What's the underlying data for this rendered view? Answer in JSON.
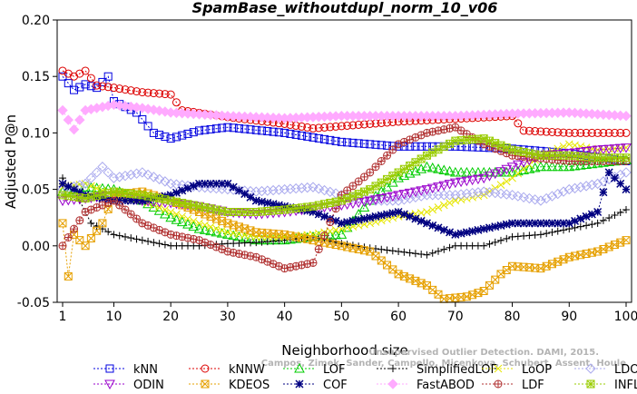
{
  "chart_data": {
    "type": "line",
    "title": "SpamBase_withoutdupl_norm_10_v06",
    "xlabel": "Neighborhood size",
    "ylabel": "Adjusted P@n",
    "xlim": [
      1,
      100
    ],
    "ylim": [
      -0.05,
      0.2
    ],
    "x_ticks": [
      "1",
      "10",
      "20",
      "30",
      "40",
      "50",
      "60",
      "70",
      "80",
      "90",
      "100"
    ],
    "y_ticks": [
      "-0.05",
      "0.00",
      "0.05",
      "0.10",
      "0.15",
      "0.20"
    ],
    "grid": false,
    "legend_position": "bottom",
    "watermark": [
      "Unsupervised Outlier Detection. DAMI, 2015.",
      "Campos, Zimek, Sander, Campello, Micenkova, Schubert, Assent, Houle"
    ],
    "series": [
      {
        "name": "kNN",
        "color": "#0000e0",
        "marker": "square",
        "dash": "2,2",
        "knots": [
          [
            1,
            0.15
          ],
          [
            3,
            0.138
          ],
          [
            5,
            0.143
          ],
          [
            7,
            0.14
          ],
          [
            9,
            0.15
          ],
          [
            10,
            0.128
          ],
          [
            14,
            0.118
          ],
          [
            17,
            0.1
          ],
          [
            20,
            0.095
          ],
          [
            25,
            0.102
          ],
          [
            30,
            0.105
          ],
          [
            40,
            0.1
          ],
          [
            50,
            0.092
          ],
          [
            60,
            0.088
          ],
          [
            70,
            0.088
          ],
          [
            80,
            0.086
          ],
          [
            90,
            0.082
          ],
          [
            100,
            0.075
          ]
        ]
      },
      {
        "name": "kNNW",
        "color": "#dd0000",
        "marker": "circle",
        "dash": "2,2",
        "knots": [
          [
            1,
            0.155
          ],
          [
            3,
            0.15
          ],
          [
            5,
            0.155
          ],
          [
            7,
            0.142
          ],
          [
            10,
            0.14
          ],
          [
            15,
            0.136
          ],
          [
            20,
            0.134
          ],
          [
            22,
            0.12
          ],
          [
            30,
            0.114
          ],
          [
            40,
            0.108
          ],
          [
            45,
            0.104
          ],
          [
            60,
            0.11
          ],
          [
            80,
            0.115
          ],
          [
            82,
            0.102
          ],
          [
            90,
            0.1
          ],
          [
            100,
            0.1
          ]
        ]
      },
      {
        "name": "LOF",
        "color": "#00cc00",
        "marker": "triangle-up",
        "dash": "2,2",
        "knots": [
          [
            1,
            0.048
          ],
          [
            5,
            0.052
          ],
          [
            10,
            0.05
          ],
          [
            15,
            0.04
          ],
          [
            20,
            0.025
          ],
          [
            25,
            0.015
          ],
          [
            30,
            0.01
          ],
          [
            35,
            0.005
          ],
          [
            40,
            0.005
          ],
          [
            45,
            0.008
          ],
          [
            50,
            0.01
          ],
          [
            55,
            0.04
          ],
          [
            60,
            0.06
          ],
          [
            65,
            0.07
          ],
          [
            70,
            0.065
          ],
          [
            75,
            0.065
          ],
          [
            80,
            0.065
          ],
          [
            85,
            0.07
          ],
          [
            90,
            0.07
          ],
          [
            100,
            0.076
          ]
        ]
      },
      {
        "name": "SimplifiedLOF",
        "color": "#000000",
        "marker": "plus",
        "dash": "2,2",
        "knots": [
          [
            1,
            0.06
          ],
          [
            4,
            0.04
          ],
          [
            6,
            0.02
          ],
          [
            10,
            0.01
          ],
          [
            15,
            0.005
          ],
          [
            20,
            0.0
          ],
          [
            25,
            0.0
          ],
          [
            30,
            0.002
          ],
          [
            35,
            0.003
          ],
          [
            40,
            0.005
          ],
          [
            45,
            0.008
          ],
          [
            50,
            0.002
          ],
          [
            55,
            -0.002
          ],
          [
            60,
            -0.005
          ],
          [
            65,
            -0.008
          ],
          [
            70,
            0.0
          ],
          [
            75,
            0.0
          ],
          [
            80,
            0.008
          ],
          [
            85,
            0.01
          ],
          [
            90,
            0.015
          ],
          [
            95,
            0.02
          ],
          [
            100,
            0.032
          ]
        ]
      },
      {
        "name": "LoOP",
        "color": "#e6e600",
        "marker": "x",
        "dash": "2,2",
        "knots": [
          [
            1,
            0.052
          ],
          [
            5,
            0.055
          ],
          [
            10,
            0.045
          ],
          [
            15,
            0.04
          ],
          [
            20,
            0.03
          ],
          [
            25,
            0.02
          ],
          [
            30,
            0.012
          ],
          [
            35,
            0.008
          ],
          [
            40,
            0.008
          ],
          [
            45,
            0.01
          ],
          [
            50,
            0.015
          ],
          [
            55,
            0.02
          ],
          [
            60,
            0.026
          ],
          [
            65,
            0.03
          ],
          [
            70,
            0.04
          ],
          [
            75,
            0.045
          ],
          [
            80,
            0.06
          ],
          [
            85,
            0.08
          ],
          [
            90,
            0.09
          ],
          [
            95,
            0.085
          ],
          [
            100,
            0.087
          ]
        ]
      },
      {
        "name": "LDOF",
        "color": "#aaaaee",
        "marker": "diamond",
        "dash": "2,2",
        "knots": [
          [
            1,
            0.05
          ],
          [
            5,
            0.055
          ],
          [
            8,
            0.07
          ],
          [
            10,
            0.06
          ],
          [
            15,
            0.065
          ],
          [
            20,
            0.055
          ],
          [
            25,
            0.052
          ],
          [
            30,
            0.05
          ],
          [
            35,
            0.048
          ],
          [
            40,
            0.05
          ],
          [
            45,
            0.052
          ],
          [
            50,
            0.045
          ],
          [
            55,
            0.04
          ],
          [
            60,
            0.04
          ],
          [
            65,
            0.045
          ],
          [
            70,
            0.045
          ],
          [
            75,
            0.048
          ],
          [
            80,
            0.045
          ],
          [
            85,
            0.04
          ],
          [
            90,
            0.05
          ],
          [
            95,
            0.055
          ],
          [
            100,
            0.065
          ]
        ]
      },
      {
        "name": "ODIN",
        "color": "#9900cc",
        "marker": "triangle-down",
        "dash": "2,2",
        "knots": [
          [
            1,
            0.04
          ],
          [
            5,
            0.042
          ],
          [
            10,
            0.045
          ],
          [
            15,
            0.04
          ],
          [
            20,
            0.038
          ],
          [
            25,
            0.035
          ],
          [
            30,
            0.03
          ],
          [
            35,
            0.028
          ],
          [
            40,
            0.03
          ],
          [
            45,
            0.033
          ],
          [
            50,
            0.036
          ],
          [
            55,
            0.04
          ],
          [
            60,
            0.045
          ],
          [
            65,
            0.05
          ],
          [
            70,
            0.056
          ],
          [
            75,
            0.06
          ],
          [
            80,
            0.07
          ],
          [
            85,
            0.08
          ],
          [
            90,
            0.082
          ],
          [
            95,
            0.085
          ],
          [
            100,
            0.087
          ]
        ]
      },
      {
        "name": "KDEOS",
        "color": "#e6a000",
        "marker": "square-x",
        "dash": "2,2",
        "knots": [
          [
            1,
            0.02
          ],
          [
            2,
            -0.027
          ],
          [
            3,
            0.01
          ],
          [
            5,
            0.0
          ],
          [
            8,
            0.02
          ],
          [
            10,
            0.045
          ],
          [
            15,
            0.048
          ],
          [
            20,
            0.04
          ],
          [
            25,
            0.03
          ],
          [
            30,
            0.02
          ],
          [
            35,
            0.012
          ],
          [
            40,
            0.01
          ],
          [
            45,
            0.005
          ],
          [
            50,
            0.0
          ],
          [
            55,
            -0.005
          ],
          [
            60,
            -0.025
          ],
          [
            65,
            -0.035
          ],
          [
            68,
            -0.047
          ],
          [
            72,
            -0.045
          ],
          [
            75,
            -0.04
          ],
          [
            78,
            -0.025
          ],
          [
            80,
            -0.018
          ],
          [
            85,
            -0.02
          ],
          [
            90,
            -0.01
          ],
          [
            95,
            -0.005
          ],
          [
            100,
            0.005
          ]
        ]
      },
      {
        "name": "COF",
        "color": "#000080",
        "marker": "asterisk",
        "dash": "2,2",
        "knots": [
          [
            1,
            0.055
          ],
          [
            5,
            0.045
          ],
          [
            10,
            0.04
          ],
          [
            15,
            0.04
          ],
          [
            20,
            0.045
          ],
          [
            25,
            0.055
          ],
          [
            30,
            0.055
          ],
          [
            35,
            0.04
          ],
          [
            40,
            0.035
          ],
          [
            45,
            0.03
          ],
          [
            50,
            0.02
          ],
          [
            55,
            0.025
          ],
          [
            60,
            0.03
          ],
          [
            65,
            0.02
          ],
          [
            70,
            0.01
          ],
          [
            75,
            0.015
          ],
          [
            80,
            0.02
          ],
          [
            85,
            0.02
          ],
          [
            90,
            0.02
          ],
          [
            95,
            0.03
          ],
          [
            97,
            0.065
          ],
          [
            100,
            0.05
          ]
        ]
      },
      {
        "name": "FastABOD",
        "color": "#ffaaff",
        "marker": "diamond-filled",
        "dash": "2,2",
        "knots": [
          [
            1,
            0.12
          ],
          [
            3,
            0.103
          ],
          [
            5,
            0.12
          ],
          [
            10,
            0.125
          ],
          [
            15,
            0.122
          ],
          [
            20,
            0.118
          ],
          [
            30,
            0.115
          ],
          [
            40,
            0.113
          ],
          [
            50,
            0.115
          ],
          [
            60,
            0.115
          ],
          [
            70,
            0.115
          ],
          [
            80,
            0.117
          ],
          [
            90,
            0.118
          ],
          [
            100,
            0.115
          ]
        ]
      },
      {
        "name": "LDF",
        "color": "#b03030",
        "marker": "circle-plus",
        "dash": "2,2",
        "knots": [
          [
            1,
            0.0
          ],
          [
            5,
            0.03
          ],
          [
            10,
            0.04
          ],
          [
            15,
            0.02
          ],
          [
            20,
            0.01
          ],
          [
            25,
            0.005
          ],
          [
            30,
            -0.005
          ],
          [
            35,
            -0.01
          ],
          [
            40,
            -0.02
          ],
          [
            45,
            -0.015
          ],
          [
            50,
            0.045
          ],
          [
            55,
            0.065
          ],
          [
            60,
            0.09
          ],
          [
            65,
            0.1
          ],
          [
            70,
            0.105
          ],
          [
            75,
            0.09
          ],
          [
            80,
            0.08
          ],
          [
            90,
            0.075
          ],
          [
            100,
            0.075
          ]
        ]
      },
      {
        "name": "INFLO",
        "color": "#99cc00",
        "marker": "square-star",
        "dash": "2,2",
        "knots": [
          [
            1,
            0.045
          ],
          [
            5,
            0.042
          ],
          [
            10,
            0.048
          ],
          [
            15,
            0.045
          ],
          [
            20,
            0.04
          ],
          [
            25,
            0.035
          ],
          [
            30,
            0.03
          ],
          [
            35,
            0.03
          ],
          [
            40,
            0.032
          ],
          [
            45,
            0.035
          ],
          [
            50,
            0.04
          ],
          [
            55,
            0.05
          ],
          [
            60,
            0.065
          ],
          [
            65,
            0.08
          ],
          [
            70,
            0.093
          ],
          [
            75,
            0.095
          ],
          [
            80,
            0.085
          ],
          [
            85,
            0.08
          ],
          [
            90,
            0.08
          ],
          [
            95,
            0.078
          ],
          [
            100,
            0.078
          ]
        ]
      }
    ]
  }
}
